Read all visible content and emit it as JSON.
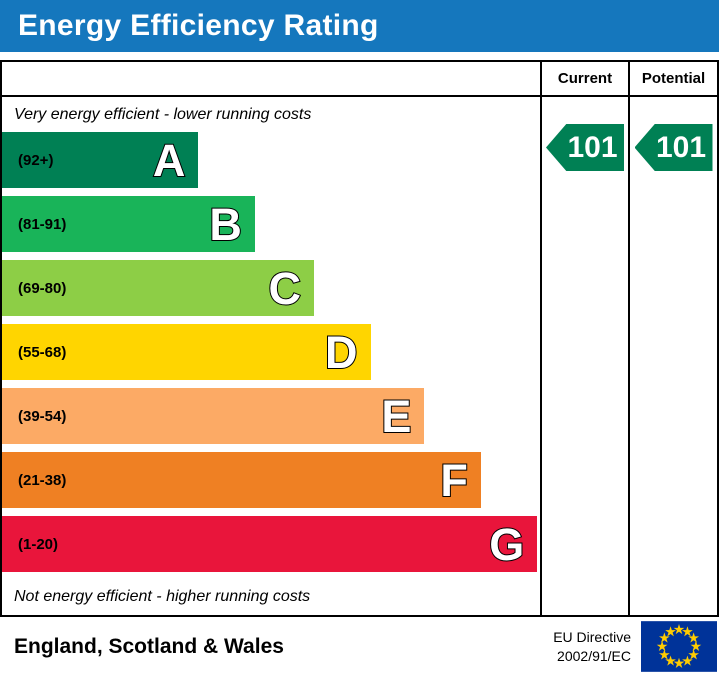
{
  "title": "Energy Efficiency Rating",
  "columns": {
    "current": "Current",
    "potential": "Potential"
  },
  "captions": {
    "top": "Very energy efficient - lower running costs",
    "bottom": "Not energy efficient - higher running costs"
  },
  "bands": [
    {
      "label": "A",
      "range": "(92+)",
      "color": "#008054",
      "width_pct": 36.5
    },
    {
      "label": "B",
      "range": "(81-91)",
      "color": "#19b459",
      "width_pct": 47
    },
    {
      "label": "C",
      "range": "(69-80)",
      "color": "#8dce46",
      "width_pct": 58
    },
    {
      "label": "D",
      "range": "(55-68)",
      "color": "#ffd500",
      "width_pct": 68.5
    },
    {
      "label": "E",
      "range": "(39-54)",
      "color": "#fcaa65",
      "width_pct": 78.5
    },
    {
      "label": "F",
      "range": "(21-38)",
      "color": "#ef8023",
      "width_pct": 89
    },
    {
      "label": "G",
      "range": "(1-20)",
      "color": "#e9153b",
      "width_pct": 99.5
    }
  ],
  "ratings": {
    "current": "101",
    "potential": "101",
    "arrow_color": "#008054"
  },
  "footer": {
    "region": "England, Scotland & Wales",
    "directive": [
      "EU Directive",
      "2002/91/EC"
    ]
  },
  "chart_data": {
    "type": "bar",
    "title": "Energy Efficiency Rating",
    "categories": [
      "A",
      "B",
      "C",
      "D",
      "E",
      "F",
      "G"
    ],
    "band_ranges": [
      "92+",
      "81-91",
      "69-80",
      "55-68",
      "39-54",
      "21-38",
      "1-20"
    ],
    "band_colors": [
      "#008054",
      "#19b459",
      "#8dce46",
      "#ffd500",
      "#fcaa65",
      "#ef8023",
      "#e9153b"
    ],
    "values": [
      36.5,
      47,
      58,
      68.5,
      78.5,
      89,
      99.5
    ],
    "current_rating": 101,
    "potential_rating": 101,
    "annotations": [
      "Very energy efficient - lower running costs",
      "Not energy efficient - higher running costs"
    ],
    "region": "England, Scotland & Wales",
    "directive": "EU Directive 2002/91/EC"
  }
}
